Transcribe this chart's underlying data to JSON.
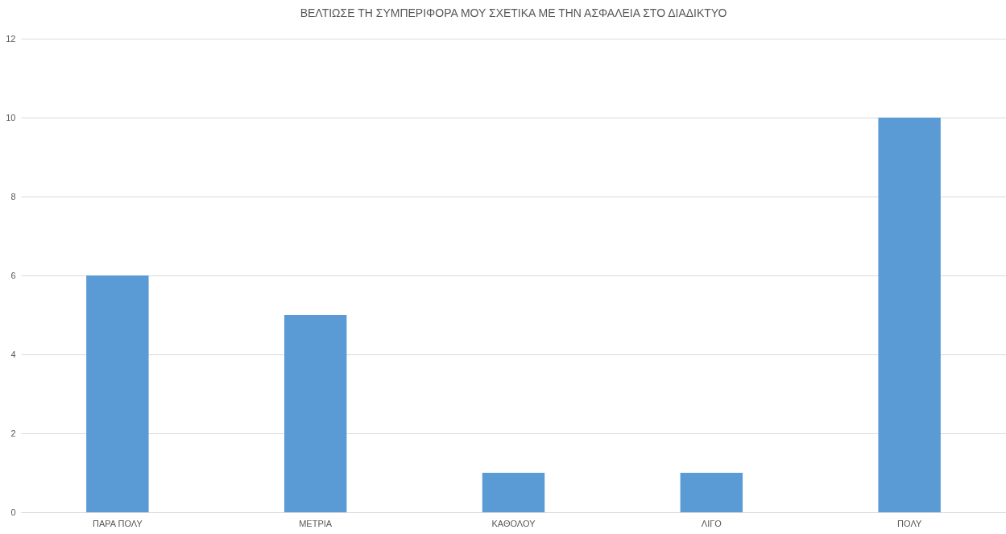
{
  "chart_data": {
    "type": "bar",
    "title": "ΒΕΛΤΙΩΣΕ ΤΗ ΣΥΜΠΕΡΙΦΟΡΑ ΜΟΥ ΣΧΕΤΙΚΑ ΜΕ ΤΗΝ ΑΣΦΑΛΕΙΑ ΣΤΟ ΔΙΑΔΙΚΤΥΟ",
    "categories": [
      "ΠΑΡΑ ΠΟΛΥ",
      "ΜΕΤΡΙΑ",
      "ΚΑΘΟΛΟΥ",
      "ΛΙΓΟ",
      "ΠΟΛΥ"
    ],
    "values": [
      6,
      5,
      1,
      1,
      10
    ],
    "color": "#5b9bd5",
    "ylim": [
      0,
      12
    ],
    "yticks": [
      0,
      2,
      4,
      6,
      8,
      10,
      12
    ],
    "grid": "y"
  }
}
